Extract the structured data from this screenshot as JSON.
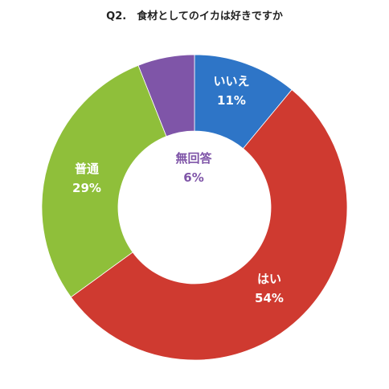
{
  "chart_data": {
    "type": "pie",
    "title": "Q2.　食材としてのイカは好きですか",
    "donut": true,
    "slices": [
      {
        "label": "いいえ",
        "value": 11,
        "value_text": "11%",
        "color": "#2e75c7",
        "label_color": "#ffffff"
      },
      {
        "label": "はい",
        "value": 54,
        "value_text": "54%",
        "color": "#cf3a30",
        "label_color": "#ffffff"
      },
      {
        "label": "普通",
        "value": 29,
        "value_text": "29%",
        "color": "#8fbf3a",
        "label_color": "#ffffff"
      },
      {
        "label": "無回答",
        "value": 6,
        "value_text": "6%",
        "color": "#7f55a8",
        "label_color": "#7f55a8"
      }
    ]
  }
}
